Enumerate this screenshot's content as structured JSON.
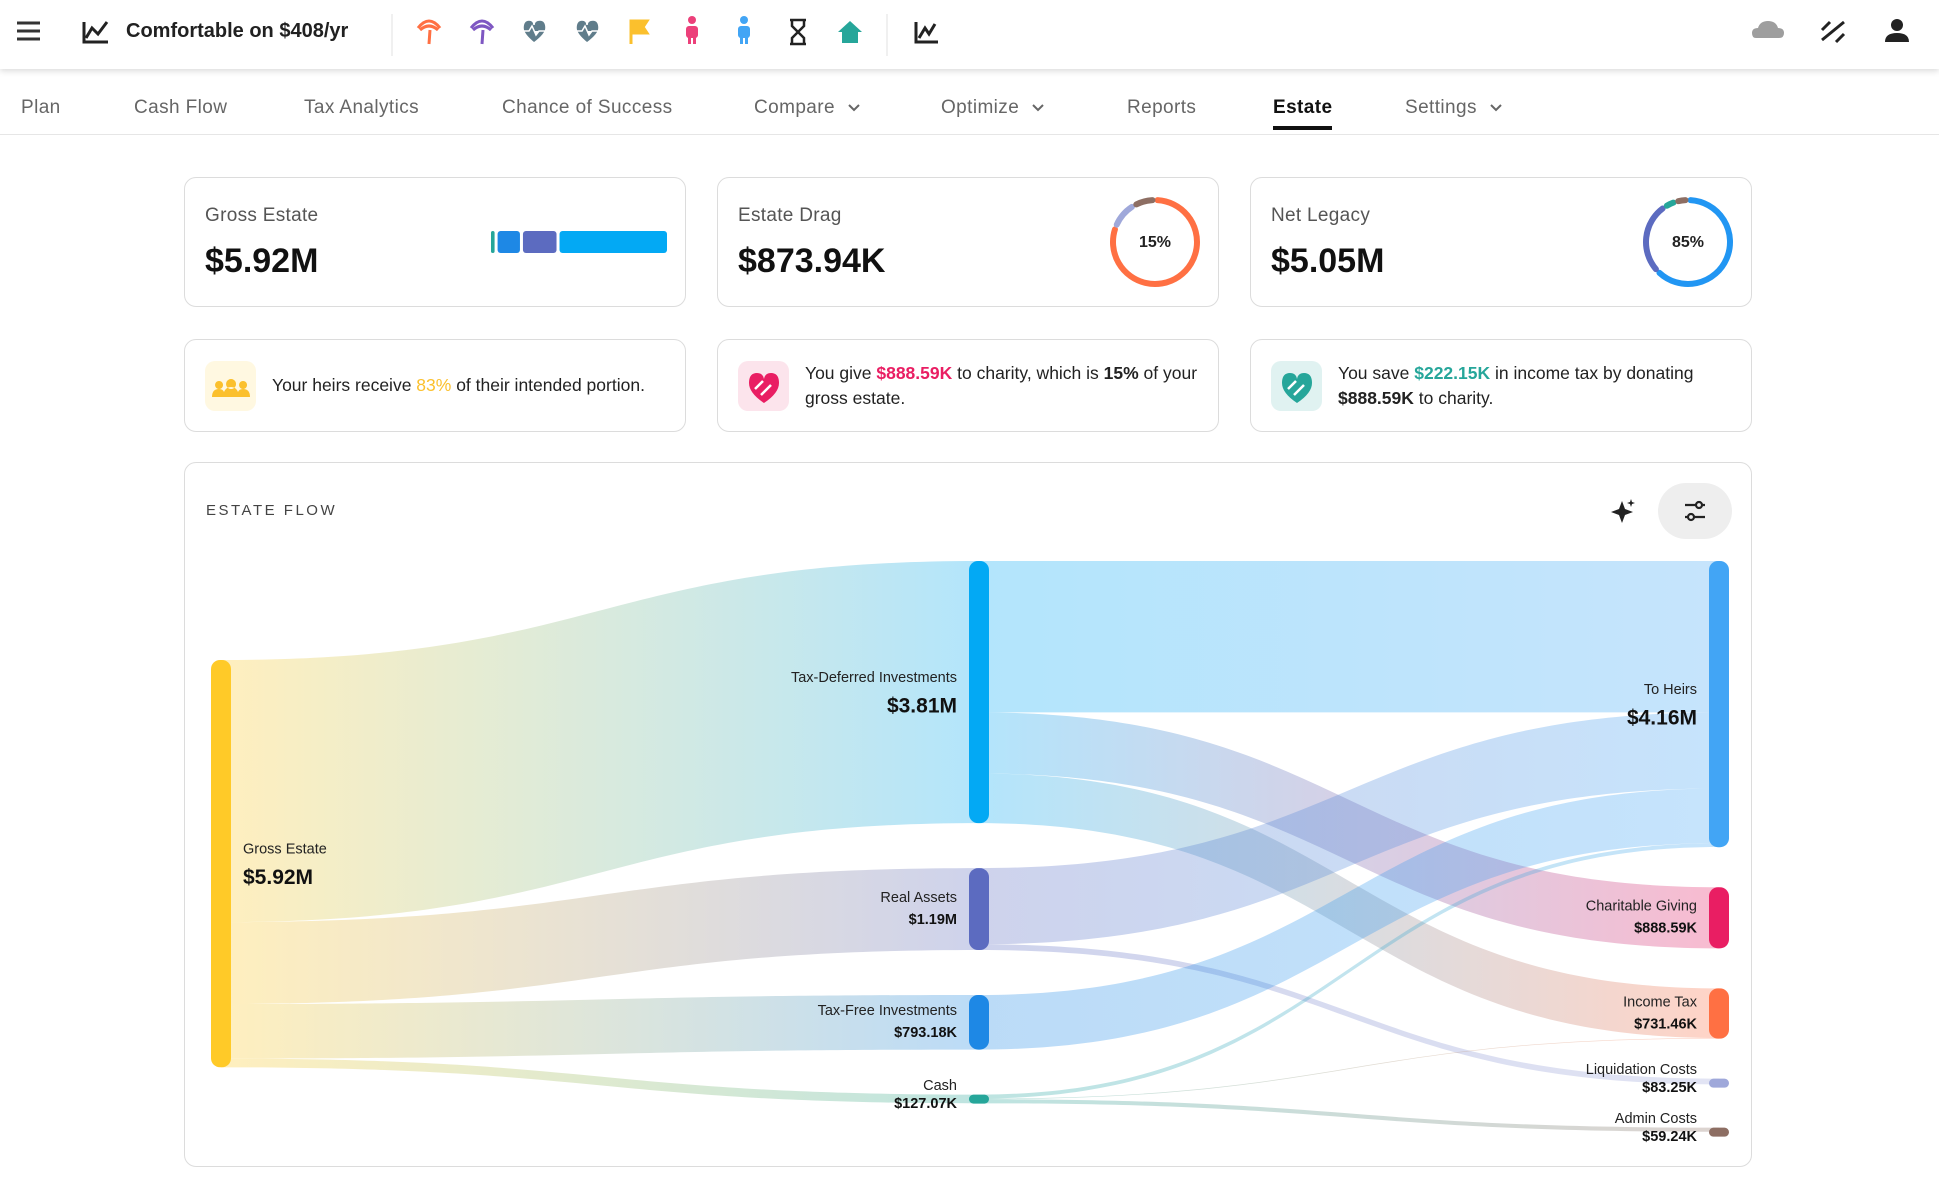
{
  "app": {
    "title": "Comfortable on $408/yr"
  },
  "tabs": [
    {
      "label": "Plan"
    },
    {
      "label": "Cash Flow"
    },
    {
      "label": "Tax Analytics"
    },
    {
      "label": "Chance of Success"
    },
    {
      "label": "Compare",
      "dropdown": true
    },
    {
      "label": "Optimize",
      "dropdown": true
    },
    {
      "label": "Reports"
    },
    {
      "label": "Estate",
      "active": true
    },
    {
      "label": "Settings",
      "dropdown": true
    }
  ],
  "summary_cards": [
    {
      "label": "Gross Estate",
      "value": "$5.92M",
      "bar": [
        {
          "color": "#26a69a",
          "value": 127070
        },
        {
          "color": "#1e88e5",
          "value": 793180
        },
        {
          "color": "#5c6bc0",
          "value": 1190000
        },
        {
          "color": "#03a9f4",
          "value": 3810000
        }
      ]
    },
    {
      "label": "Estate Drag",
      "value": "$873.94K",
      "donut_label": "15%",
      "donut": [
        {
          "color": "#ff7043",
          "value": 731460
        },
        {
          "color": "#9fa8da",
          "value": 83250
        },
        {
          "color": "#8d6e63",
          "value": 59240
        }
      ]
    },
    {
      "label": "Net Legacy",
      "value": "$5.05M",
      "donut_label": "85%",
      "donut": [
        {
          "color": "#2196f3",
          "value": 66
        },
        {
          "color": "#5c6bc0",
          "value": 28
        },
        {
          "color": "#26a69a",
          "value": 3
        },
        {
          "color": "#8d6e63",
          "value": 3
        }
      ]
    }
  ],
  "insights": [
    {
      "icon_color": "#fbc02d",
      "icon_bg": "#fff8e1",
      "parts": [
        {
          "text": "Your heirs receive "
        },
        {
          "text": "83%",
          "color": "#fbc02d"
        },
        {
          "text": " of their intended portion."
        }
      ]
    },
    {
      "icon_color": "#e91e63",
      "icon_bg": "#fce4ec",
      "parts": [
        {
          "text": "You give "
        },
        {
          "text": "$888.59K",
          "color": "#e91e63",
          "bold": true
        },
        {
          "text": " to charity, which is "
        },
        {
          "text": "15%",
          "bold": true
        },
        {
          "text": " of your gross estate."
        }
      ]
    },
    {
      "icon_color": "#26a69a",
      "icon_bg": "#e0f2f1",
      "parts": [
        {
          "text": "You save "
        },
        {
          "text": "$222.15K",
          "color": "#26a69a",
          "bold": true
        },
        {
          "text": " in income tax by donating "
        },
        {
          "text": "$888.59K",
          "bold": true
        },
        {
          "text": " to charity."
        }
      ]
    }
  ],
  "estate_flow": {
    "title": "ESTATE FLOW",
    "nodes": [
      {
        "name": "Gross Estate",
        "value": 5920000,
        "value_label": "$5.92M",
        "color": "#ffca28"
      },
      {
        "name": "Tax-Deferred Investments",
        "value": 3810000,
        "value_label": "$3.81M",
        "color": "#03a9f4"
      },
      {
        "name": "Real Assets",
        "value": 1190000,
        "value_label": "$1.19M",
        "color": "#5c6bc0"
      },
      {
        "name": "Tax-Free Investments",
        "value": 793180,
        "value_label": "$793.18K",
        "color": "#1e88e5"
      },
      {
        "name": "Cash",
        "value": 127070,
        "value_label": "$127.07K",
        "color": "#26a69a"
      },
      {
        "name": "To Heirs",
        "value": 4160000,
        "value_label": "$4.16M",
        "color": "#42a5f5"
      },
      {
        "name": "Charitable Giving",
        "value": 888590,
        "value_label": "$888.59K",
        "color": "#e91e63"
      },
      {
        "name": "Income Tax",
        "value": 731460,
        "value_label": "$731.46K",
        "color": "#ff7043"
      },
      {
        "name": "Liquidation Costs",
        "value": 83250,
        "value_label": "$83.25K",
        "color": "#9fa8da"
      },
      {
        "name": "Admin Costs",
        "value": 59240,
        "value_label": "$59.24K",
        "color": "#8d6e63"
      }
    ],
    "links": [
      {
        "source": 0,
        "target": 1,
        "value": 3810000
      },
      {
        "source": 0,
        "target": 2,
        "value": 1190000
      },
      {
        "source": 0,
        "target": 3,
        "value": 793180
      },
      {
        "source": 0,
        "target": 4,
        "value": 127070
      },
      {
        "source": 1,
        "target": 5,
        "value": 2200000
      },
      {
        "source": 1,
        "target": 6,
        "value": 888590
      },
      {
        "source": 1,
        "target": 7,
        "value": 721410
      },
      {
        "source": 2,
        "target": 5,
        "value": 1106750
      },
      {
        "source": 2,
        "target": 8,
        "value": 83250
      },
      {
        "source": 3,
        "target": 5,
        "value": 793180
      },
      {
        "source": 4,
        "target": 5,
        "value": 57780
      },
      {
        "source": 4,
        "target": 7,
        "value": 10050
      },
      {
        "source": 4,
        "target": 9,
        "value": 59240
      }
    ]
  }
}
